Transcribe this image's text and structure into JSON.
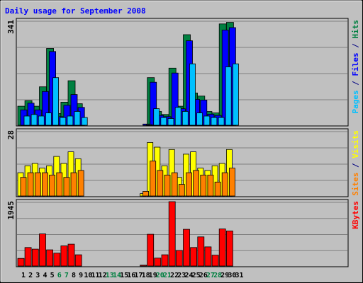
{
  "chart_data": {
    "type": "bar",
    "title": "Daily usage for September 2008",
    "categories": [
      "1",
      "2",
      "3",
      "4",
      "5",
      "6",
      "7",
      "8",
      "9",
      "10",
      "11",
      "12",
      "13",
      "14",
      "15",
      "16",
      "17",
      "18",
      "19",
      "20",
      "21",
      "22",
      "23",
      "24",
      "25",
      "26",
      "27",
      "28",
      "29",
      "30",
      "31"
    ],
    "weekend_days": [
      6,
      7,
      13,
      14,
      20,
      21,
      27,
      28
    ],
    "panels": [
      {
        "id": "top",
        "ymax_label": "341",
        "ymax": 341,
        "legend": [
          {
            "text": "Pages",
            "color": "#00c0ff"
          },
          {
            "text": " / ",
            "color": "#000080"
          },
          {
            "text": "Files",
            "color": "#0000ff"
          },
          {
            "text": " / ",
            "color": "#000080"
          },
          {
            "text": "Hits",
            "color": "#008040"
          }
        ],
        "series": [
          {
            "name": "Hits",
            "color": "#008040",
            "values": [
              62,
              80,
              62,
              125,
              250,
              38,
              75,
              145,
              70,
              0,
              0,
              0,
              0,
              0,
              0,
              0,
              0,
              0,
              155,
              45,
              35,
              186,
              62,
              295,
              105,
              95,
              45,
              40,
              330,
              335,
              0
            ]
          },
          {
            "name": "Files",
            "color": "#0000ff",
            "values": [
              50,
              72,
              50,
              110,
              240,
              28,
              65,
              100,
              58,
              0,
              0,
              0,
              0,
              0,
              0,
              0,
              0,
              4,
              140,
              32,
              28,
              170,
              54,
              275,
              84,
              82,
              36,
              32,
              310,
              318,
              0
            ]
          },
          {
            "name": "Pages",
            "color": "#00c0ff",
            "values": [
              30,
              35,
              30,
              40,
              155,
              25,
              30,
              45,
              25,
              0,
              0,
              0,
              0,
              0,
              0,
              0,
              0,
              2,
              54,
              25,
              22,
              58,
              45,
              200,
              40,
              30,
              25,
              25,
              190,
              200,
              0
            ]
          }
        ]
      },
      {
        "id": "middle",
        "ymax_label": "28",
        "ymax": 28,
        "legend": [
          {
            "text": "Sites",
            "color": "#ff8000"
          },
          {
            "text": " / ",
            "color": "#000080"
          },
          {
            "text": "Visits",
            "color": "#ffff00"
          }
        ],
        "series": [
          {
            "name": "Visits",
            "color": "#ffff00",
            "values": [
              10,
              13,
              14,
              12,
              13,
              17,
              14,
              19,
              16,
              0,
              0,
              0,
              0,
              0,
              0,
              0,
              0,
              1,
              23,
              21,
              13,
              20,
              8,
              18,
              19,
              12,
              11,
              13,
              14,
              20,
              0
            ]
          },
          {
            "name": "Sites",
            "color": "#ff8000",
            "values": [
              8,
              10,
              10,
              10,
              9,
              10,
              8,
              10,
              11,
              0,
              0,
              0,
              0,
              0,
              0,
              0,
              0,
              2,
              15,
              11,
              9,
              10,
              5,
              10,
              11,
              9,
              9,
              6,
              10,
              12,
              0
            ]
          }
        ]
      },
      {
        "id": "bottom",
        "ymax_label": "1945",
        "ymax": 1945,
        "legend": [
          {
            "text": "KBytes",
            "color": "#ff0000"
          }
        ],
        "series": [
          {
            "name": "KBytes",
            "color": "#ff0000",
            "values": [
              230,
              560,
              510,
              970,
              490,
              390,
              610,
              660,
              340,
              0,
              0,
              0,
              0,
              0,
              0,
              0,
              0,
              25,
              960,
              240,
              340,
              1945,
              470,
              1110,
              560,
              880,
              580,
              330,
              1120,
              1060,
              0
            ]
          }
        ]
      }
    ]
  }
}
